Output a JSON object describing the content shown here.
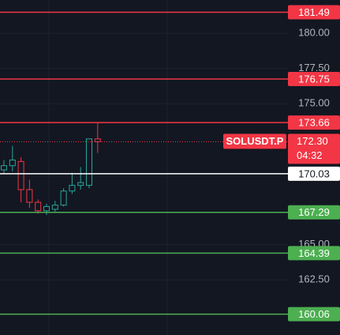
{
  "chart_data": {
    "type": "candlestick",
    "symbol": "SOLUSDT.P",
    "countdown": "04:32",
    "categories": [
      null,
      null,
      null,
      null,
      null,
      null,
      null,
      null,
      null,
      null,
      null,
      null
    ],
    "open": [
      170.3,
      170.6,
      170.9,
      168.9,
      168.0,
      167.4,
      167.5,
      167.8,
      168.8,
      169.2,
      169.2,
      172.5
    ],
    "high": [
      171.0,
      172.0,
      171.2,
      169.6,
      168.2,
      167.9,
      168.1,
      169.0,
      170.1,
      170.5,
      172.5,
      173.66
    ],
    "low": [
      170.0,
      170.2,
      168.0,
      167.6,
      167.2,
      167.1,
      167.3,
      167.7,
      168.6,
      168.9,
      169.0,
      171.5
    ],
    "close": [
      170.6,
      171.0,
      168.9,
      168.0,
      167.4,
      167.7,
      167.8,
      168.8,
      169.2,
      169.4,
      172.5,
      172.3
    ],
    "up_color": "#26a69a",
    "down_color": "#f23645",
    "last_price": {
      "value": 172.3,
      "label": "172.30"
    },
    "price_lines": [
      {
        "value": 181.49,
        "color": "#f23645"
      },
      {
        "value": 176.75,
        "color": "#f23645"
      },
      {
        "value": 173.66,
        "color": "#f23645"
      },
      {
        "value": 170.03,
        "color": "#ffffff"
      },
      {
        "value": 167.29,
        "color": "#4caf50"
      },
      {
        "value": 164.39,
        "color": "#4caf50"
      },
      {
        "value": 160.06,
        "color": "#4caf50"
      }
    ],
    "ylim": [
      158.58,
      182.36
    ],
    "yticks": [
      {
        "value": 180,
        "label": "180.00"
      },
      {
        "value": 177.5,
        "label": "177.50"
      },
      {
        "value": 175,
        "label": "175.00"
      },
      {
        "value": 165,
        "label": "165.00"
      },
      {
        "value": 162.5,
        "label": "162.50"
      }
    ],
    "grid": true
  }
}
